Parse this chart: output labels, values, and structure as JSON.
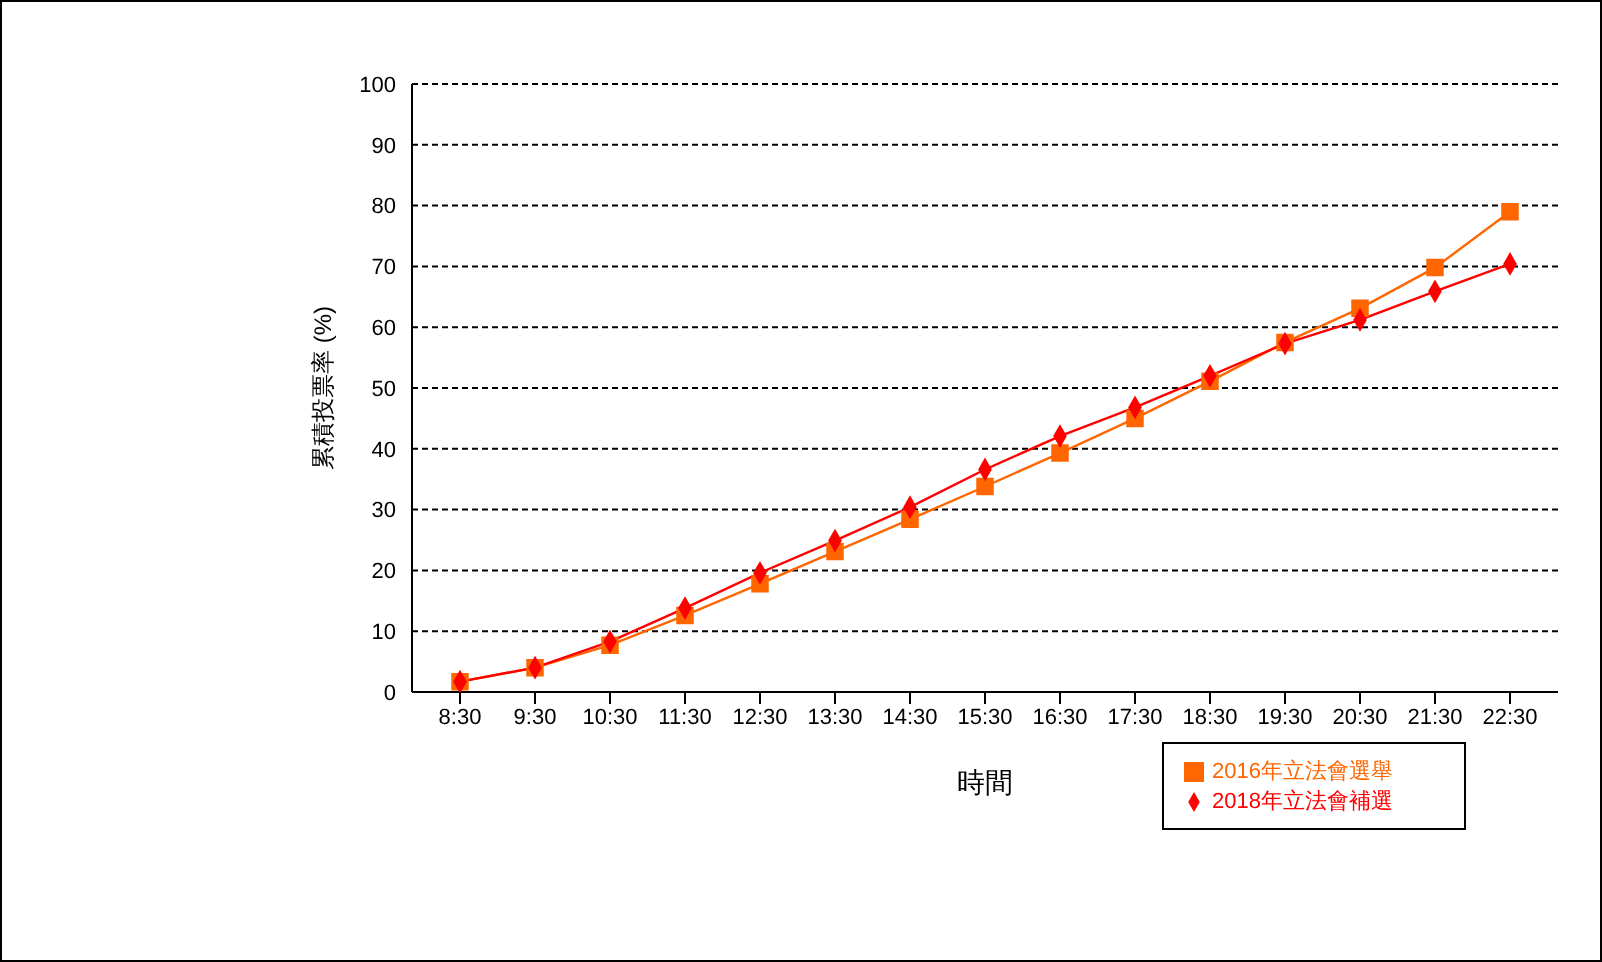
{
  "chart_data": {
    "type": "line",
    "xlabel": "時間",
    "ylabel": "累積投票率 (%)",
    "categories": [
      "8:30",
      "9:30",
      "10:30",
      "11:30",
      "12:30",
      "13:30",
      "14:30",
      "15:30",
      "16:30",
      "17:30",
      "18:30",
      "19:30",
      "20:30",
      "21:30",
      "22:30"
    ],
    "series": [
      {
        "name": "2016年立法會選舉",
        "color": "#ff6600",
        "marker": "square",
        "values": [
          1.7,
          4.0,
          7.7,
          12.6,
          17.8,
          23.1,
          28.4,
          33.8,
          39.3,
          45.0,
          51.1,
          57.5,
          63.1,
          69.8,
          79.0
        ]
      },
      {
        "name": "2018年立法會補選",
        "color": "#ff0000",
        "marker": "diamond",
        "values": [
          1.7,
          4.0,
          8.3,
          13.8,
          19.6,
          24.9,
          30.4,
          36.6,
          42.1,
          46.8,
          52.0,
          57.3,
          61.2,
          65.9,
          70.4
        ]
      }
    ],
    "ylim": [
      0,
      100
    ],
    "yticks": [
      0,
      10,
      20,
      30,
      40,
      50,
      60,
      70,
      80,
      90,
      100
    ],
    "grid": "y",
    "legend": "bottom right",
    "line_style": "solid"
  }
}
